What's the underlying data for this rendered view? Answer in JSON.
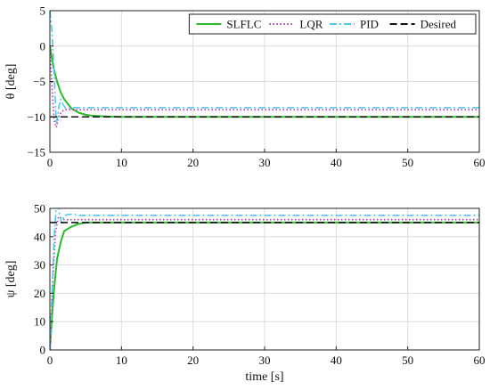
{
  "chart_data": [
    {
      "type": "line",
      "ylabel": "θ [deg]",
      "xlim": [
        0,
        60
      ],
      "ylim": [
        -15,
        5
      ],
      "xticks": [
        0,
        10,
        20,
        30,
        40,
        50,
        60
      ],
      "yticks": [
        5,
        0,
        -5,
        -10,
        -15
      ],
      "ytick_labels": [
        "5",
        "0",
        "−5",
        "−10",
        "−15"
      ],
      "grid": true,
      "legend_position": "top-right",
      "series": [
        {
          "name": "SLFLC",
          "color": "#2eb82e",
          "style": "solid",
          "x": [
            0,
            0.5,
            1,
            1.5,
            2,
            3,
            4,
            5,
            6,
            8,
            10,
            60
          ],
          "y": [
            0,
            -3.0,
            -5.0,
            -6.5,
            -7.5,
            -8.8,
            -9.4,
            -9.7,
            -9.85,
            -9.95,
            -10,
            -10
          ]
        },
        {
          "name": "LQR",
          "color": "#b233b2",
          "style": "dotted",
          "x": [
            0,
            0.3,
            0.6,
            0.9,
            1.2,
            1.6,
            2.0,
            3.0,
            4.0,
            60
          ],
          "y": [
            0,
            -6.0,
            -10.5,
            -11.5,
            -10.0,
            -9.3,
            -9.0,
            -9.0,
            -9.0,
            -9.0
          ]
        },
        {
          "name": "PID",
          "color": "#55c6e6",
          "style": "dashdot",
          "x": [
            0,
            0.3,
            0.6,
            0.9,
            1.2,
            1.5,
            1.8,
            2.2,
            3.0,
            4.0,
            60
          ],
          "y": [
            5,
            2,
            -4,
            -11,
            -9,
            -7.5,
            -8.2,
            -8.8,
            -8.7,
            -8.7,
            -8.7
          ]
        },
        {
          "name": "Desired",
          "color": "#111111",
          "style": "dashed",
          "x": [
            0,
            60
          ],
          "y": [
            -10,
            -10
          ]
        }
      ]
    },
    {
      "type": "line",
      "xlabel": "time [s]",
      "ylabel": "ψ [deg]",
      "xlim": [
        0,
        60
      ],
      "ylim": [
        0,
        50
      ],
      "xticks": [
        0,
        10,
        20,
        30,
        40,
        50,
        60
      ],
      "yticks": [
        50,
        40,
        30,
        20,
        10,
        0
      ],
      "ytick_labels": [
        "50",
        "40",
        "30",
        "20",
        "10",
        "0"
      ],
      "grid": true,
      "series": [
        {
          "name": "SLFLC",
          "color": "#2eb82e",
          "style": "solid",
          "x": [
            0,
            0.3,
            0.6,
            1.0,
            1.5,
            2.0,
            3.0,
            4.0,
            5.0,
            6.0,
            8.0,
            60
          ],
          "y": [
            0,
            12,
            22,
            32,
            38,
            42,
            43.5,
            44.5,
            45,
            45,
            45,
            45
          ]
        },
        {
          "name": "LQR",
          "color": "#b233b2",
          "style": "dotted",
          "x": [
            0,
            0.4,
            0.8,
            1.2,
            1.6,
            2.0,
            3.0,
            60
          ],
          "y": [
            0,
            25,
            42,
            47,
            46.5,
            46,
            46,
            46
          ]
        },
        {
          "name": "PID",
          "color": "#55c6e6",
          "style": "dashdot",
          "x": [
            0,
            0.3,
            0.6,
            0.9,
            1.2,
            1.6,
            2.0,
            3.0,
            4.0,
            60
          ],
          "y": [
            0,
            20,
            40,
            51,
            50,
            45,
            47.5,
            48,
            47.5,
            47.5
          ]
        },
        {
          "name": "Desired",
          "color": "#111111",
          "style": "dashed",
          "x": [
            0,
            60
          ],
          "y": [
            45,
            45
          ]
        }
      ]
    }
  ]
}
